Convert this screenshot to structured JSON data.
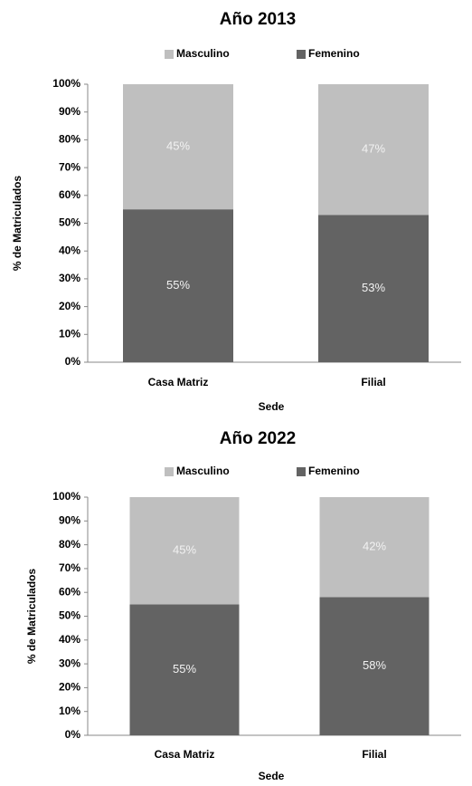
{
  "chart_data": [
    {
      "type": "bar",
      "stacked": true,
      "title": "Año 2013",
      "x_label": "Sede",
      "y_label": "% de Matriculados",
      "categories": [
        "Casa Matriz",
        "Filial"
      ],
      "series": [
        {
          "name": "Masculino",
          "color": "#bfbfbf",
          "values": [
            45,
            47
          ],
          "value_labels": [
            "45%",
            "47%"
          ]
        },
        {
          "name": "Femenino",
          "color": "#636363",
          "values": [
            55,
            53
          ],
          "value_labels": [
            "55%",
            "53%"
          ]
        }
      ],
      "ylim": [
        0,
        100
      ],
      "yticks": [
        {
          "value": 0,
          "label": "0%"
        },
        {
          "value": 10,
          "label": "10%"
        },
        {
          "value": 20,
          "label": "20%"
        },
        {
          "value": 30,
          "label": "30%"
        },
        {
          "value": 40,
          "label": "40%"
        },
        {
          "value": 50,
          "label": "50%"
        },
        {
          "value": 60,
          "label": "60%"
        },
        {
          "value": 70,
          "label": "70%"
        },
        {
          "value": 80,
          "label": "80%"
        },
        {
          "value": 90,
          "label": "90%"
        },
        {
          "value": 100,
          "label": "100%"
        }
      ],
      "legend": "top"
    },
    {
      "type": "bar",
      "stacked": true,
      "title": "Año 2022",
      "x_label": "Sede",
      "y_label": "% de Matriculados",
      "categories": [
        "Casa Matriz",
        "Filial"
      ],
      "series": [
        {
          "name": "Masculino",
          "color": "#bfbfbf",
          "values": [
            45,
            42
          ],
          "value_labels": [
            "45%",
            "42%"
          ]
        },
        {
          "name": "Femenino",
          "color": "#636363",
          "values": [
            55,
            58
          ],
          "value_labels": [
            "55%",
            "58%"
          ]
        }
      ],
      "ylim": [
        0,
        100
      ],
      "yticks": [
        {
          "value": 0,
          "label": "0%"
        },
        {
          "value": 10,
          "label": "10%"
        },
        {
          "value": 20,
          "label": "20%"
        },
        {
          "value": 30,
          "label": "30%"
        },
        {
          "value": 40,
          "label": "40%"
        },
        {
          "value": 50,
          "label": "50%"
        },
        {
          "value": 60,
          "label": "60%"
        },
        {
          "value": 70,
          "label": "70%"
        },
        {
          "value": 80,
          "label": "80%"
        },
        {
          "value": 90,
          "label": "90%"
        },
        {
          "value": 100,
          "label": "100%"
        }
      ],
      "legend": "top"
    }
  ]
}
